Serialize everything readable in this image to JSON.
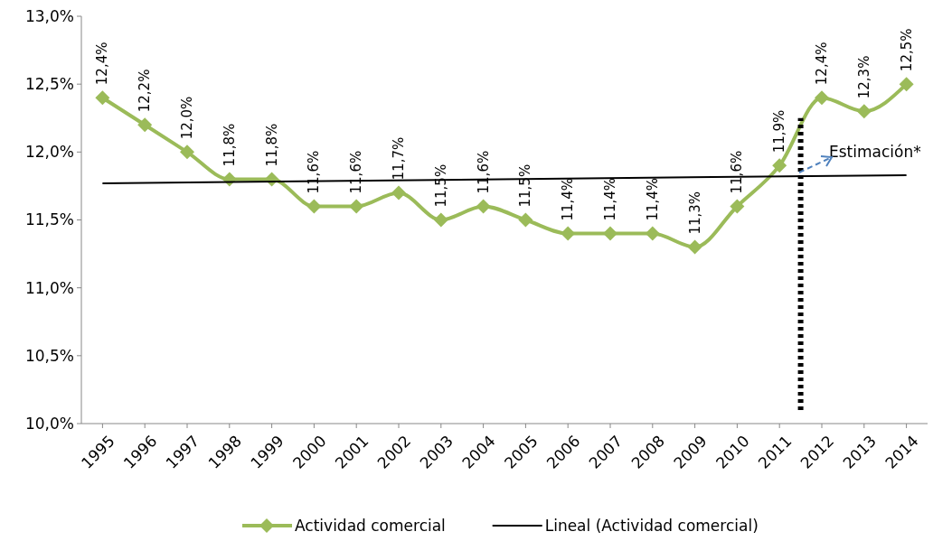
{
  "chart_data": {
    "type": "line",
    "x": [
      1995,
      1996,
      1997,
      1998,
      1999,
      2000,
      2001,
      2002,
      2003,
      2004,
      2005,
      2006,
      2007,
      2008,
      2009,
      2010,
      2011,
      2012,
      2013,
      2014
    ],
    "xlim": [
      1994.5,
      2014.5
    ],
    "xticks": [
      1995,
      1996,
      1997,
      1998,
      1999,
      2000,
      2001,
      2002,
      2003,
      2004,
      2005,
      2006,
      2007,
      2008,
      2009,
      2010,
      2011,
      2012,
      2013,
      2014
    ],
    "ylim": [
      10,
      13
    ],
    "yticks": [
      {
        "value": 10,
        "label": "10,0%"
      },
      {
        "value": 10.5,
        "label": "10,5%"
      },
      {
        "value": 11,
        "label": "11,0%"
      },
      {
        "value": 11.5,
        "label": "11,5%"
      },
      {
        "value": 12,
        "label": "12,0%"
      },
      {
        "value": 12.5,
        "label": "12,5%"
      },
      {
        "value": 13,
        "label": "13,0%"
      }
    ],
    "grid": false,
    "legend": "bottom",
    "annotations": [
      "Estimación*"
    ],
    "series": [
      {
        "name": "Actividad comercial",
        "color": "#9bbb59",
        "marker": "diamond",
        "line_style": "solid",
        "values": [
          12.4,
          12.2,
          12.0,
          11.8,
          11.8,
          11.6,
          11.6,
          11.7,
          11.5,
          11.6,
          11.5,
          11.4,
          11.4,
          11.4,
          11.3,
          11.6,
          11.9,
          12.4,
          12.3,
          12.5
        ],
        "value_labels": [
          "12,4%",
          "12,2%",
          "12,0%",
          "11,8%",
          "11,8%",
          "11,6%",
          "11,6%",
          "11,7%",
          "11,5%",
          "11,6%",
          "11,5%",
          "11,4%",
          "11,4%",
          "11,4%",
          "11,3%",
          "11,6%",
          "11,9%",
          "12,4%",
          "12,3%",
          "12,5%"
        ]
      },
      {
        "name": "Lineal (Actividad comercial)",
        "color": "#000000",
        "marker": "none",
        "line_style": "solid",
        "x": [
          1995,
          2014
        ],
        "values": [
          11.77,
          11.83
        ]
      },
      {
        "color": "#000000",
        "marker": "none",
        "line_style": "dotted",
        "x": [
          2011.5,
          2011.5
        ],
        "values": [
          10.1,
          12.25
        ]
      }
    ]
  }
}
